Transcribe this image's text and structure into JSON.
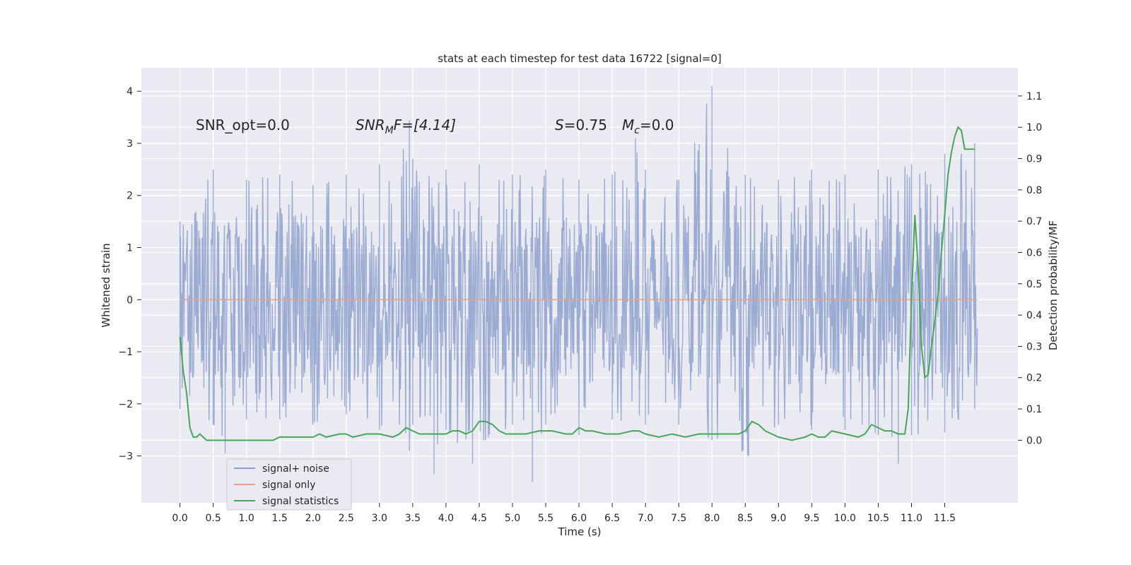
{
  "chart_data": {
    "type": "line",
    "title": "stats at each timestep for test data 16722 [signal=0]",
    "xlabel": "Time (s)",
    "ylabel": "Whitened strain",
    "ylabel_right": "Detection probability/MF",
    "xlim": [
      -0.58,
      12.6
    ],
    "ylim": [
      -3.9,
      4.45
    ],
    "ylim_right": [
      -0.2,
      1.19
    ],
    "x_ticks": [
      "0.0",
      "0.5",
      "1.0",
      "1.5",
      "2.0",
      "2.5",
      "3.0",
      "3.5",
      "4.0",
      "4.5",
      "5.0",
      "5.5",
      "6.0",
      "6.5",
      "7.0",
      "7.5",
      "8.0",
      "8.5",
      "9.0",
      "9.5",
      "10.0",
      "10.5",
      "11.0",
      "11.5"
    ],
    "y_ticks": [
      "−3",
      "−2",
      "−1",
      "0",
      "1",
      "2",
      "3",
      "4"
    ],
    "y_right_ticks": [
      "0.0",
      "0.1",
      "0.2",
      "0.3",
      "0.4",
      "0.5",
      "0.6",
      "0.7",
      "0.8",
      "0.9",
      "1.0",
      "1.1"
    ],
    "grid": true,
    "legend_position": "lower-left",
    "annotations": {
      "snr_opt": "SNR_opt=0.0",
      "snr_mf_sym": "SNR",
      "snr_mf_sub": "M",
      "snr_mf_rest": "F=[4.14]",
      "s_sym": "S",
      "s_rest": "=0.75",
      "mc_sym": "M",
      "mc_sub": "c",
      "mc_rest": "=0.0"
    },
    "series": [
      {
        "name": "signal+ noise",
        "color": "#8da0cb",
        "axis": "left",
        "x_range": [
          0.0,
          11.99
        ],
        "upper_envelope": {
          "x": [
            0.0,
            0.5,
            1.0,
            1.5,
            2.0,
            2.5,
            3.0,
            3.45,
            3.5,
            4.0,
            4.5,
            5.0,
            5.5,
            6.0,
            6.5,
            6.85,
            7.0,
            7.5,
            8.0,
            8.5,
            9.0,
            9.5,
            10.0,
            10.5,
            11.0,
            11.5,
            11.95
          ],
          "y": [
            1.5,
            2.5,
            2.3,
            2.4,
            2.2,
            2.4,
            2.6,
            3.45,
            2.7,
            2.5,
            2.6,
            2.4,
            2.5,
            2.3,
            2.4,
            3.1,
            2.5,
            2.3,
            4.1,
            2.4,
            2.3,
            2.5,
            2.4,
            2.5,
            2.6,
            2.8,
            3.0
          ]
        },
        "lower_envelope": {
          "x": [
            0.0,
            0.5,
            0.68,
            1.0,
            1.5,
            2.0,
            2.5,
            3.0,
            3.45,
            3.5,
            3.82,
            4.0,
            4.4,
            5.0,
            5.3,
            5.5,
            6.0,
            6.5,
            7.0,
            7.5,
            8.0,
            8.55,
            9.0,
            9.5,
            10.0,
            10.5,
            10.8,
            11.0,
            11.5,
            11.95
          ],
          "y": [
            -2.1,
            -2.4,
            -2.95,
            -2.3,
            -2.3,
            -2.4,
            -2.2,
            -2.5,
            -2.9,
            -2.4,
            -3.35,
            -2.5,
            -3.15,
            -2.4,
            -3.5,
            -2.4,
            -2.6,
            -2.3,
            -2.4,
            -2.4,
            -2.7,
            -3.0,
            -2.4,
            -2.5,
            -2.5,
            -2.6,
            -3.15,
            -2.6,
            -2.55,
            -2.1
          ]
        }
      },
      {
        "name": "signal only",
        "color": "#e8a183",
        "axis": "left",
        "x": [
          0.0,
          11.99
        ],
        "y": [
          0.0,
          0.0
        ]
      },
      {
        "name": "signal statistics",
        "color": "#4aa55c",
        "axis": "right",
        "x": [
          0.0,
          0.05,
          0.1,
          0.15,
          0.2,
          0.25,
          0.3,
          0.4,
          0.5,
          0.7,
          0.9,
          1.0,
          1.2,
          1.4,
          1.5,
          1.6,
          1.8,
          2.0,
          2.1,
          2.2,
          2.4,
          2.5,
          2.6,
          2.8,
          3.0,
          3.2,
          3.3,
          3.4,
          3.5,
          3.6,
          3.8,
          4.0,
          4.1,
          4.2,
          4.3,
          4.4,
          4.5,
          4.6,
          4.7,
          4.8,
          4.9,
          5.0,
          5.2,
          5.4,
          5.6,
          5.8,
          5.9,
          6.0,
          6.1,
          6.2,
          6.4,
          6.6,
          6.8,
          6.9,
          7.0,
          7.2,
          7.4,
          7.6,
          7.8,
          8.0,
          8.2,
          8.4,
          8.5,
          8.6,
          8.7,
          8.8,
          9.0,
          9.2,
          9.4,
          9.5,
          9.6,
          9.7,
          9.8,
          10.0,
          10.2,
          10.3,
          10.4,
          10.5,
          10.6,
          10.7,
          10.8,
          10.9,
          10.95,
          11.0,
          11.05,
          11.1,
          11.15,
          11.2,
          11.25,
          11.3,
          11.35,
          11.4,
          11.45,
          11.5,
          11.55,
          11.6,
          11.65,
          11.7,
          11.75,
          11.8,
          11.85,
          11.9,
          11.95
        ],
        "y": [
          0.33,
          0.22,
          0.15,
          0.04,
          0.01,
          0.01,
          0.02,
          0.0,
          0.0,
          0.0,
          0.0,
          0.0,
          0.0,
          0.0,
          0.01,
          0.01,
          0.01,
          0.01,
          0.02,
          0.01,
          0.02,
          0.02,
          0.01,
          0.02,
          0.02,
          0.01,
          0.02,
          0.04,
          0.03,
          0.02,
          0.02,
          0.02,
          0.03,
          0.03,
          0.02,
          0.03,
          0.06,
          0.06,
          0.05,
          0.03,
          0.02,
          0.02,
          0.02,
          0.03,
          0.03,
          0.02,
          0.02,
          0.04,
          0.03,
          0.03,
          0.02,
          0.02,
          0.03,
          0.03,
          0.02,
          0.01,
          0.02,
          0.01,
          0.02,
          0.02,
          0.02,
          0.02,
          0.03,
          0.06,
          0.05,
          0.03,
          0.01,
          0.0,
          0.01,
          0.02,
          0.01,
          0.01,
          0.03,
          0.02,
          0.01,
          0.02,
          0.05,
          0.04,
          0.03,
          0.03,
          0.02,
          0.02,
          0.1,
          0.45,
          0.72,
          0.55,
          0.3,
          0.2,
          0.21,
          0.3,
          0.38,
          0.47,
          0.6,
          0.72,
          0.85,
          0.92,
          0.97,
          1.0,
          0.99,
          0.93,
          0.93,
          0.93,
          0.93
        ]
      }
    ]
  }
}
